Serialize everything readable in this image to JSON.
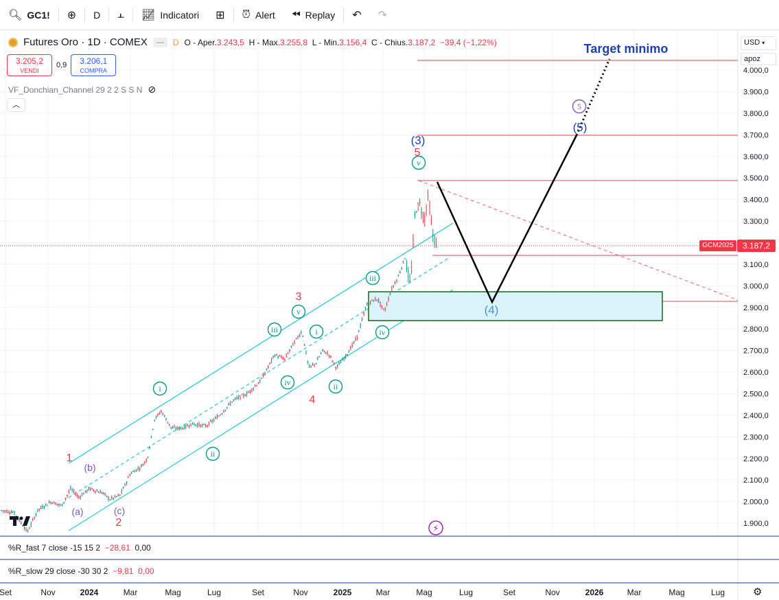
{
  "toolbar": {
    "symbol": "GC1!",
    "interval": "D",
    "indicators_label": "Indicatori",
    "alert_label": "Alert",
    "replay_label": "Replay",
    "icons": [
      "search-icon",
      "add-symbol-icon",
      "bar-type-icon",
      "indicators-icon",
      "layout-icon",
      "alert-icon",
      "replay-icon",
      "undo-icon",
      "redo-icon"
    ]
  },
  "legend": {
    "title": "Futures Oro · 1D · COMEX",
    "badge_dash": "—",
    "badge_d": "D",
    "ohlc": {
      "o_label": "O - Aper.",
      "o": "3.243,5",
      "h_label": "H - Max.",
      "h": "3.255,8",
      "l_label": "L - Min.",
      "l": "3.156,4",
      "c_label": "C - Chius.",
      "c": "3.187,2",
      "change": "−39,4 (−1,22%)"
    }
  },
  "trade": {
    "sell_price": "3.205,2",
    "sell_label": "VENDI",
    "spread": "0,9",
    "buy_price": "3.206,1",
    "buy_label": "COMPRA"
  },
  "indicator": {
    "name": "VF_Donchian_Channel 29 2 2 S S N"
  },
  "price_axis": {
    "currency": "USD",
    "apoz": "apoz",
    "labels": [
      "4.000,0",
      "3.900,0",
      "3.800,0",
      "3.700,0",
      "3.600,0",
      "3.500,0",
      "3.400,0",
      "3.300,0",
      "3.200,0",
      "3.100,0",
      "3.000,0",
      "2.900,0",
      "2.800,0",
      "2.700,0",
      "2.600,0",
      "2.500,0",
      "2.400,0",
      "2.300,0",
      "2.200,0",
      "2.100,0",
      "2.000,0",
      "1.900,0"
    ],
    "current_price": "3.187,2",
    "current_symbol": "GCM2025"
  },
  "annotations": {
    "target": "Target minimo",
    "wave_labels": [
      "1",
      "(b)",
      "(a)",
      "(c)",
      "2",
      "i",
      "ii",
      "iii",
      "iv",
      "v",
      "3",
      "4",
      "i",
      "ii",
      "iii",
      "iv",
      "v",
      "5",
      "(3)",
      "(4)",
      "5",
      "(5)"
    ]
  },
  "panes": {
    "r_fast": {
      "name": "%R_fast 7 close -15 15 2",
      "v1": "−28,61",
      "v2": "0,00"
    },
    "r_slow": {
      "name": "%R_slow 29 close -30 30 2",
      "v1": "−9,81",
      "v2": "0,00"
    }
  },
  "time_axis": [
    "Set",
    "Nov",
    "2024",
    "Mar",
    "Mag",
    "Lug",
    "Set",
    "Nov",
    "2025",
    "Mar",
    "Mag",
    "Lug",
    "Set",
    "Nov",
    "2026",
    "Mar",
    "Mag",
    "Lug"
  ],
  "colors": {
    "up": "#089981",
    "down": "#f23645",
    "channel": "#26c6da",
    "wave_green": "#089981",
    "wave_red": "#f23645",
    "wave_purple": "#7e57c2",
    "wave_blue": "#1e3fb3",
    "box_fill": "#d8f3fa",
    "box_border": "#1b5e20"
  }
}
